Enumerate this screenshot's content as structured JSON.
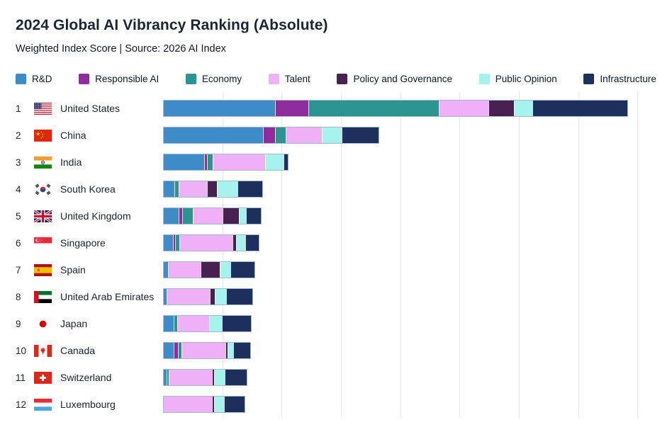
{
  "header": {
    "title": "2024 Global AI Vibrancy Ranking (Absolute)",
    "subtitle": "Weighted Index Score | Source: 2026 AI Index"
  },
  "chart_data": {
    "type": "bar",
    "stacked": true,
    "orientation": "horizontal",
    "title": "2024 Global AI Vibrancy Ranking (Absolute)",
    "subtitle": "Weighted Index Score | Source: 2026 AI Index",
    "axis": {
      "min": 0,
      "max": 85.6,
      "gridline_step": 10,
      "gridlines_visible": true,
      "tick_labels_visible": false
    },
    "legend": {
      "position": "top",
      "entries": [
        {
          "key": "rd",
          "label": "R&D",
          "color": "#3e8cc7"
        },
        {
          "key": "rai",
          "label": "Responsible AI",
          "color": "#8f2d9e"
        },
        {
          "key": "econ",
          "label": "Economy",
          "color": "#2b9490"
        },
        {
          "key": "talent",
          "label": "Talent",
          "color": "#efb0f5"
        },
        {
          "key": "policy",
          "label": "Policy and Governance",
          "color": "#492052"
        },
        {
          "key": "pubop",
          "label": "Public Opinion",
          "color": "#a6f2ed"
        },
        {
          "key": "infra",
          "label": "Infrastructure",
          "color": "#1d2f5c"
        }
      ]
    },
    "rows": [
      {
        "rank": 1,
        "country": "United States",
        "flag": "us",
        "values": {
          "rd": 19.0,
          "rai": 5.6,
          "econ": 22.1,
          "talent": 8.4,
          "policy": 4.2,
          "pubop": 3.0,
          "infra": 16.1
        },
        "total": 78.4
      },
      {
        "rank": 2,
        "country": "China",
        "flag": "cn",
        "values": {
          "rd": 17.1,
          "rai": 2.0,
          "econ": 1.7,
          "talent": 6.1,
          "policy": 0,
          "pubop": 3.3,
          "infra": 6.3
        },
        "total": 36.5
      },
      {
        "rank": 3,
        "country": "India",
        "flag": "in",
        "values": {
          "rd": 7.1,
          "rai": 0.4,
          "econ": 0.8,
          "talent": 9.1,
          "policy": 0,
          "pubop": 3.2,
          "infra": 0.6
        },
        "total": 21.2
      },
      {
        "rank": 4,
        "country": "South Korea",
        "flag": "kr",
        "values": {
          "rd": 1.9,
          "rai": 0,
          "econ": 0.6,
          "talent": 4.9,
          "policy": 1.7,
          "pubop": 3.5,
          "infra": 4.3
        },
        "total": 16.9
      },
      {
        "rank": 5,
        "country": "United Kingdom",
        "flag": "gb",
        "values": {
          "rd": 2.6,
          "rai": 0.6,
          "econ": 1.7,
          "talent": 5.3,
          "policy": 2.8,
          "pubop": 1.1,
          "infra": 2.5
        },
        "total": 16.6
      },
      {
        "rank": 6,
        "country": "Singapore",
        "flag": "sg",
        "values": {
          "rd": 1.7,
          "rai": 0.2,
          "econ": 0.6,
          "talent": 9.4,
          "policy": 0.5,
          "pubop": 1.6,
          "infra": 2.3
        },
        "total": 16.3
      },
      {
        "rank": 7,
        "country": "Spain",
        "flag": "es",
        "values": {
          "rd": 0.7,
          "rai": 0,
          "econ": 0,
          "talent": 5.7,
          "policy": 3.3,
          "pubop": 1.7,
          "infra": 4.1
        },
        "total": 15.5
      },
      {
        "rank": 8,
        "country": "United Arab Emirates",
        "flag": "ae",
        "values": {
          "rd": 0.5,
          "rai": 0,
          "econ": 0,
          "talent": 7.5,
          "policy": 0.8,
          "pubop": 1.9,
          "infra": 4.5
        },
        "total": 15.2
      },
      {
        "rank": 9,
        "country": "Japan",
        "flag": "jp",
        "values": {
          "rd": 1.8,
          "rai": 0,
          "econ": 0.5,
          "talent": 5.5,
          "policy": 0,
          "pubop": 2.1,
          "infra": 5.1
        },
        "total": 15.0
      },
      {
        "rank": 10,
        "country": "Canada",
        "flag": "ca",
        "values": {
          "rd": 1.8,
          "rai": 0.6,
          "econ": 0.5,
          "talent": 7.8,
          "policy": 0.3,
          "pubop": 0.9,
          "infra": 2.9
        },
        "total": 14.8
      },
      {
        "rank": 11,
        "country": "Switzerland",
        "flag": "ch",
        "values": {
          "rd": 0.5,
          "rai": 0,
          "econ": 0.2,
          "talent": 7.7,
          "policy": 0.2,
          "pubop": 1.8,
          "infra": 3.8
        },
        "total": 14.2
      },
      {
        "rank": 12,
        "country": "Luxembourg",
        "flag": "lu",
        "values": {
          "rd": 0,
          "rai": 0,
          "econ": 0,
          "talent": 8.5,
          "policy": 0.2,
          "pubop": 1.7,
          "infra": 3.5
        },
        "total": 13.9
      }
    ]
  }
}
